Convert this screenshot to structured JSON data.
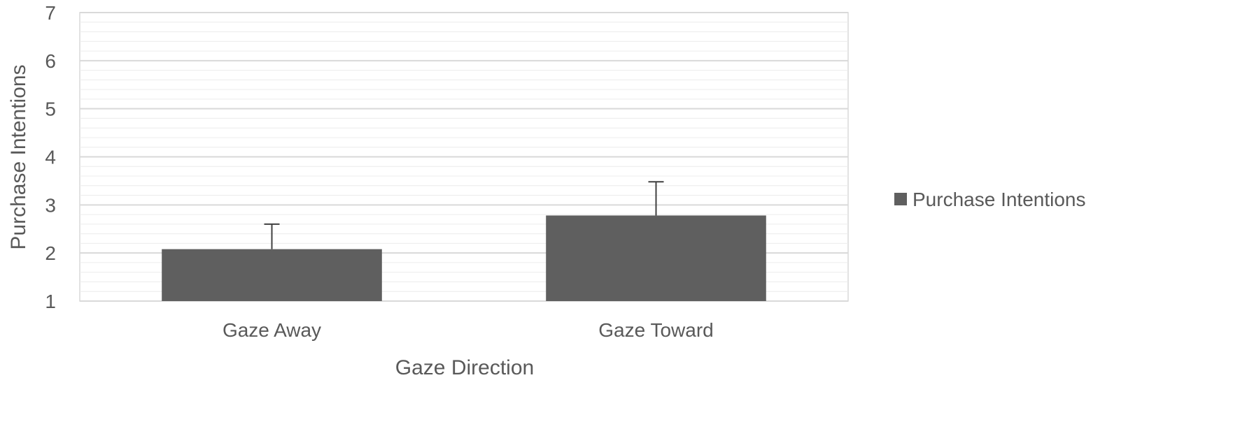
{
  "chart_data": {
    "type": "bar",
    "categories": [
      "Gaze Away",
      "Gaze Toward"
    ],
    "series": [
      {
        "name": "Purchase Intentions",
        "values": [
          2.08,
          2.78
        ],
        "error_plus": [
          0.52,
          0.7
        ]
      }
    ],
    "xlabel": "Gaze Direction",
    "ylabel": "Purchase Intentions",
    "ylim": [
      1,
      7
    ],
    "yticks": [
      "1",
      "2",
      "3",
      "4",
      "5",
      "6",
      "7"
    ],
    "minor_grid_step": 0.2,
    "grid": true,
    "legend": "right",
    "colors": {
      "bar": "#5f5f5f",
      "major_grid": "#d9d9d9",
      "minor_grid": "#ececec",
      "text": "#595959",
      "error_bar": "#404040"
    }
  }
}
